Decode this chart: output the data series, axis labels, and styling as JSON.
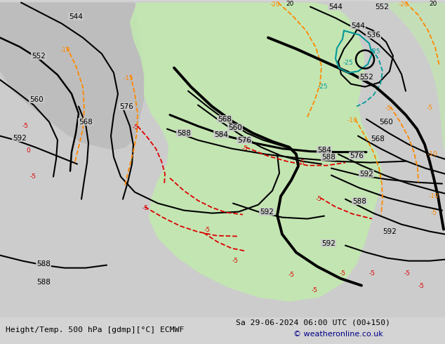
{
  "title_left": "Height/Temp. 500 hPa [gdmp][°C] ECMWF",
  "title_right": "Sa 29-06-2024 06:00 UTC (00+150)",
  "credit": "© weatheronline.co.uk",
  "bg_color": "#d4d4d4",
  "land_green": "#c2e8b0",
  "land_gray": "#b8b8b8",
  "ocean_color": "#cccccc",
  "z500_color": "#000000",
  "temp_orange": "#ff8800",
  "temp_red": "#dd0000",
  "temp_teal": "#009999"
}
